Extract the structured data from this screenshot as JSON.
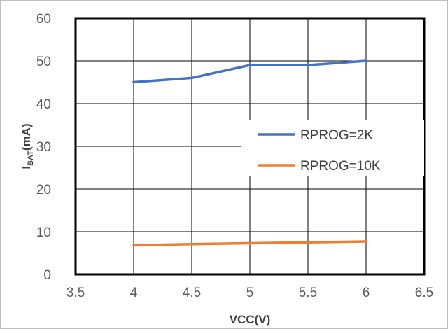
{
  "chart_data": {
    "type": "line",
    "title": "",
    "xlabel": "VCC(V)",
    "ylabel": {
      "main": "I",
      "sub": "BAT",
      "rest": "(mA)"
    },
    "xlim": [
      3.5,
      6.5
    ],
    "ylim": [
      0,
      60
    ],
    "xticks": [
      "3.5",
      "4",
      "4.5",
      "5",
      "5.5",
      "6",
      "6.5"
    ],
    "yticks": [
      "0",
      "10",
      "20",
      "30",
      "40",
      "50",
      "60"
    ],
    "grid": true,
    "legend_position": "right",
    "series": [
      {
        "name": "RPROG=2K",
        "color": "#4472c4",
        "x": [
          4,
          4.5,
          5,
          5.5,
          6
        ],
        "y": [
          45,
          46,
          49,
          49,
          50
        ]
      },
      {
        "name": "RPROG=10K",
        "color": "#ed7d31",
        "x": [
          4,
          4.5,
          5,
          5.5,
          6
        ],
        "y": [
          6.8,
          7.1,
          7.3,
          7.5,
          7.7
        ]
      }
    ]
  }
}
